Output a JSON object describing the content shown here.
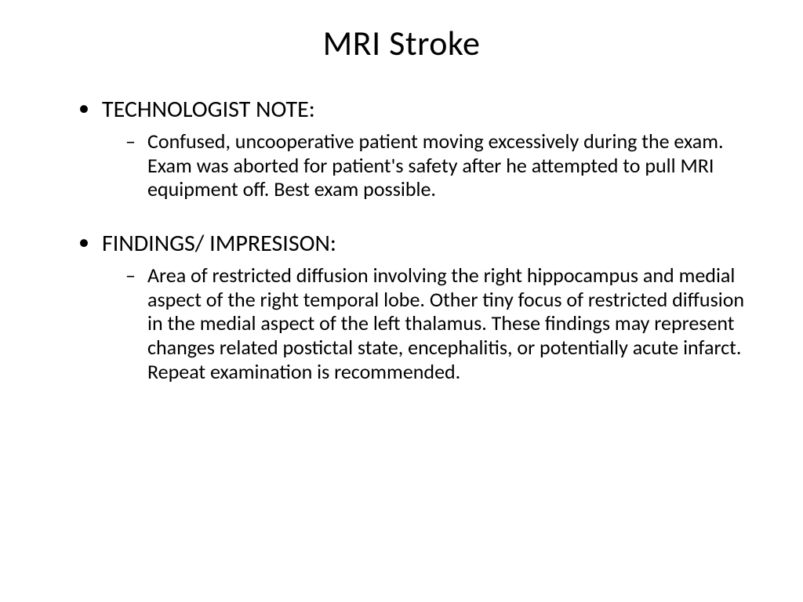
{
  "slide": {
    "title": "MRI Stroke",
    "title_fontsize": 44,
    "background_color": "#ffffff",
    "text_color": "#000000",
    "sections": [
      {
        "heading": "TECHNOLOGIST NOTE:",
        "heading_fontsize": 30,
        "body": "Confused, uncooperative patient moving excessively during the exam. Exam was aborted for patient's safety after he attempted to pull MRI equipment off. Best exam possible.",
        "body_fontsize": 26
      },
      {
        "heading": "FINDINGS/ IMPRESISON:",
        "heading_fontsize": 30,
        "body": "Area of restricted diffusion involving the right hippocampus and medial aspect of the right temporal lobe. Other tiny focus of restricted diffusion in the medial aspect of the left thalamus. These findings may represent changes related postictal state, encephalitis, or potentially acute infarct. Repeat examination is recommended.",
        "body_fontsize": 26
      }
    ],
    "bullet_level1_marker": "•",
    "bullet_level2_marker": "–"
  }
}
